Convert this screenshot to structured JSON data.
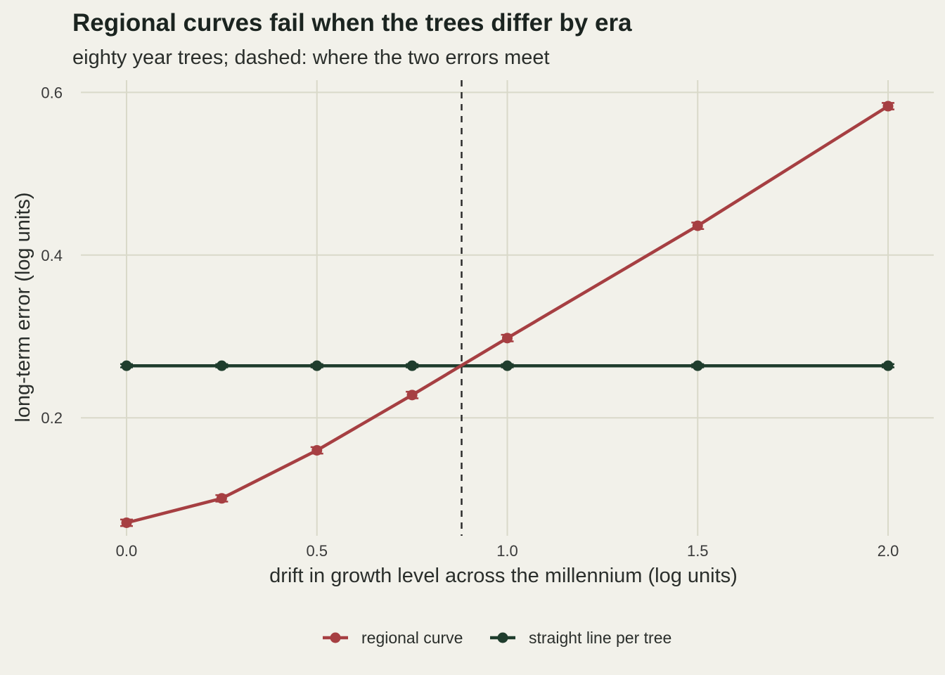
{
  "chart_data": {
    "type": "line",
    "title": "Regional curves fail when the trees differ by era",
    "subtitle": "eighty year trees; dashed: where the two errors meet",
    "xlabel": "drift in growth level across the millennium (log units)",
    "ylabel": "long-term error (log units)",
    "xlim": [
      -0.12,
      2.12
    ],
    "ylim": [
      0.055,
      0.615
    ],
    "x_ticks": [
      {
        "value": 0.0,
        "label": "0.0"
      },
      {
        "value": 0.5,
        "label": "0.5"
      },
      {
        "value": 1.0,
        "label": "1.0"
      },
      {
        "value": 1.5,
        "label": "1.5"
      },
      {
        "value": 2.0,
        "label": "2.0"
      }
    ],
    "y_ticks": [
      {
        "value": 0.2,
        "label": "0.2"
      },
      {
        "value": 0.4,
        "label": "0.4"
      },
      {
        "value": 0.6,
        "label": "0.6"
      }
    ],
    "grid": true,
    "legend_position": "bottom",
    "vline": {
      "x": 0.88,
      "style": "dashed",
      "color": "#2b2b2b"
    },
    "series": [
      {
        "name": "regional curve",
        "color": "#a63f42",
        "x": [
          0.0,
          0.25,
          0.5,
          0.75,
          1.0,
          1.5,
          2.0
        ],
        "y": [
          0.071,
          0.101,
          0.16,
          0.228,
          0.298,
          0.436,
          0.583
        ],
        "error": [
          0.004,
          0.004,
          0.004,
          0.004,
          0.004,
          0.004,
          0.004
        ]
      },
      {
        "name": "straight line per tree",
        "color": "#1f3d2d",
        "x": [
          0.0,
          0.25,
          0.5,
          0.75,
          1.0,
          1.5,
          2.0
        ],
        "y": [
          0.264,
          0.264,
          0.264,
          0.264,
          0.264,
          0.264,
          0.264
        ],
        "error": [
          0.002,
          0.002,
          0.002,
          0.002,
          0.002,
          0.002,
          0.002
        ]
      }
    ]
  }
}
